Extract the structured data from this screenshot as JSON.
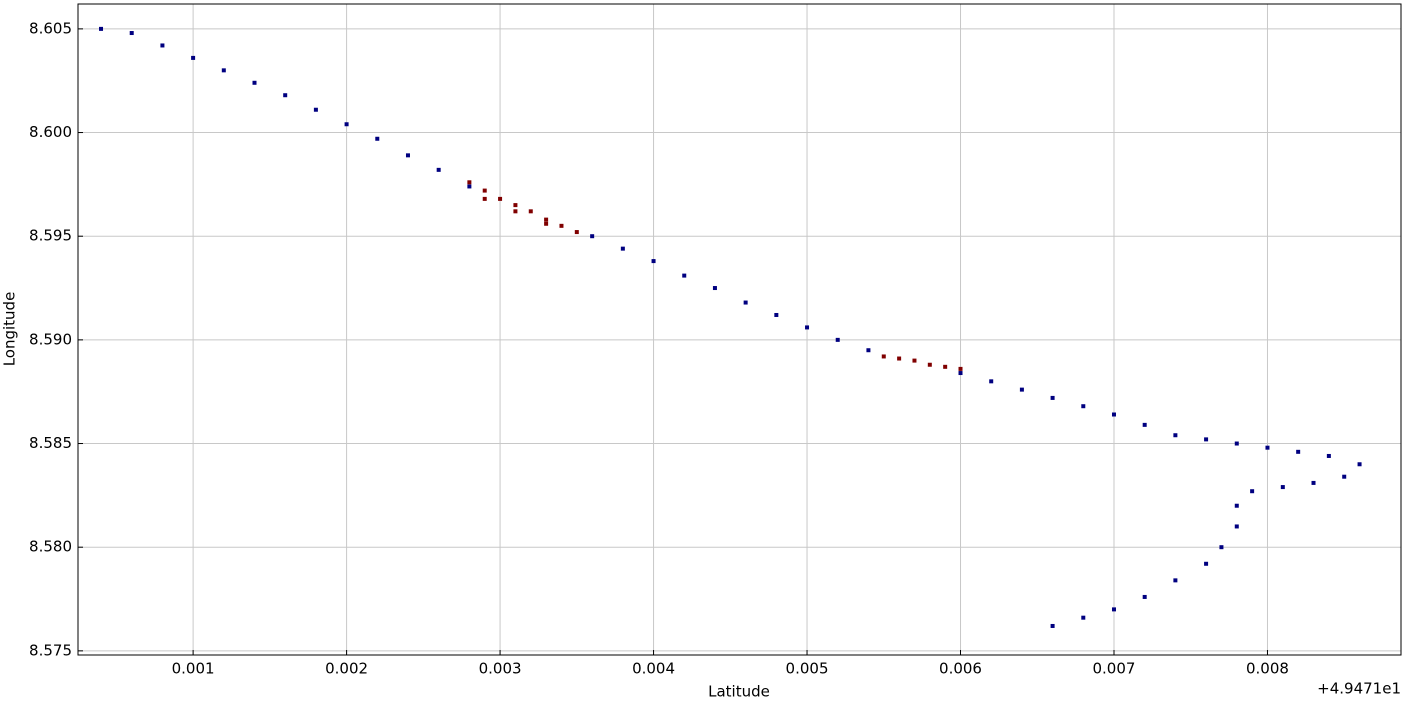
{
  "chart_data": {
    "type": "scatter",
    "xlabel": "Latitude",
    "ylabel": "Longitude",
    "x_offset_text": "+4.9471e1",
    "xlim": [
      0.00025,
      0.00887
    ],
    "ylim": [
      8.5748,
      8.6062
    ],
    "xticks": [
      0.001,
      0.002,
      0.003,
      0.004,
      0.005,
      0.006,
      0.007,
      0.008
    ],
    "yticks": [
      8.575,
      {
        "value": 8.58,
        "label": "8.580"
      },
      8.585,
      {
        "value": 8.59,
        "label": "8.590"
      },
      8.595,
      {
        "value": 8.6,
        "label": "8.600"
      },
      8.605
    ],
    "grid": true,
    "series": [
      {
        "color": "#000080",
        "x": [
          0.0004,
          0.0006,
          0.0008,
          0.001,
          0.0012,
          0.0014,
          0.0016,
          0.0018,
          0.002,
          0.0022,
          0.0024,
          0.0026,
          0.0028,
          0.0036,
          0.0038,
          0.004,
          0.0042,
          0.0044,
          0.0046,
          0.0048,
          0.005,
          0.0052,
          0.0054,
          0.006,
          0.0062,
          0.0064,
          0.0066,
          0.0068,
          0.007,
          0.0072,
          0.0074,
          0.0076,
          0.0078,
          0.008,
          0.0082,
          0.0084,
          0.0086,
          0.0085,
          0.0083,
          0.0081,
          0.0079,
          0.0078,
          0.0078,
          0.0077,
          0.0076,
          0.0074,
          0.0072,
          0.007,
          0.0068,
          0.0066
        ],
        "values": [
          8.605,
          8.6048,
          8.6042,
          8.6036,
          8.603,
          8.6024,
          8.6018,
          8.6011,
          8.6004,
          8.5997,
          8.5989,
          8.5982,
          8.5974,
          8.595,
          8.5944,
          8.5938,
          8.5931,
          8.5925,
          8.5918,
          8.5912,
          8.5906,
          8.59,
          8.5895,
          8.5884,
          8.588,
          8.5876,
          8.5872,
          8.5868,
          8.5864,
          8.5859,
          8.5854,
          8.5852,
          8.585,
          8.5848,
          8.5846,
          8.5844,
          8.584,
          8.5834,
          8.5831,
          8.5829,
          8.5827,
          8.582,
          8.581,
          8.58,
          8.5792,
          8.5784,
          8.5776,
          8.577,
          8.5766,
          8.5762
        ]
      },
      {
        "color": "#800000",
        "x": [
          0.0028,
          0.0029,
          0.003,
          0.0031,
          0.0032,
          0.0033,
          0.0034,
          0.0035,
          0.0029,
          0.0031,
          0.0033,
          0.0055,
          0.0056,
          0.0057,
          0.0058,
          0.0059,
          0.006
        ],
        "values": [
          8.5976,
          8.5972,
          8.5968,
          8.5965,
          8.5962,
          8.5958,
          8.5955,
          8.5952,
          8.5968,
          8.5962,
          8.5956,
          8.5892,
          8.5891,
          8.589,
          8.5888,
          8.5887,
          8.5886
        ]
      }
    ]
  }
}
